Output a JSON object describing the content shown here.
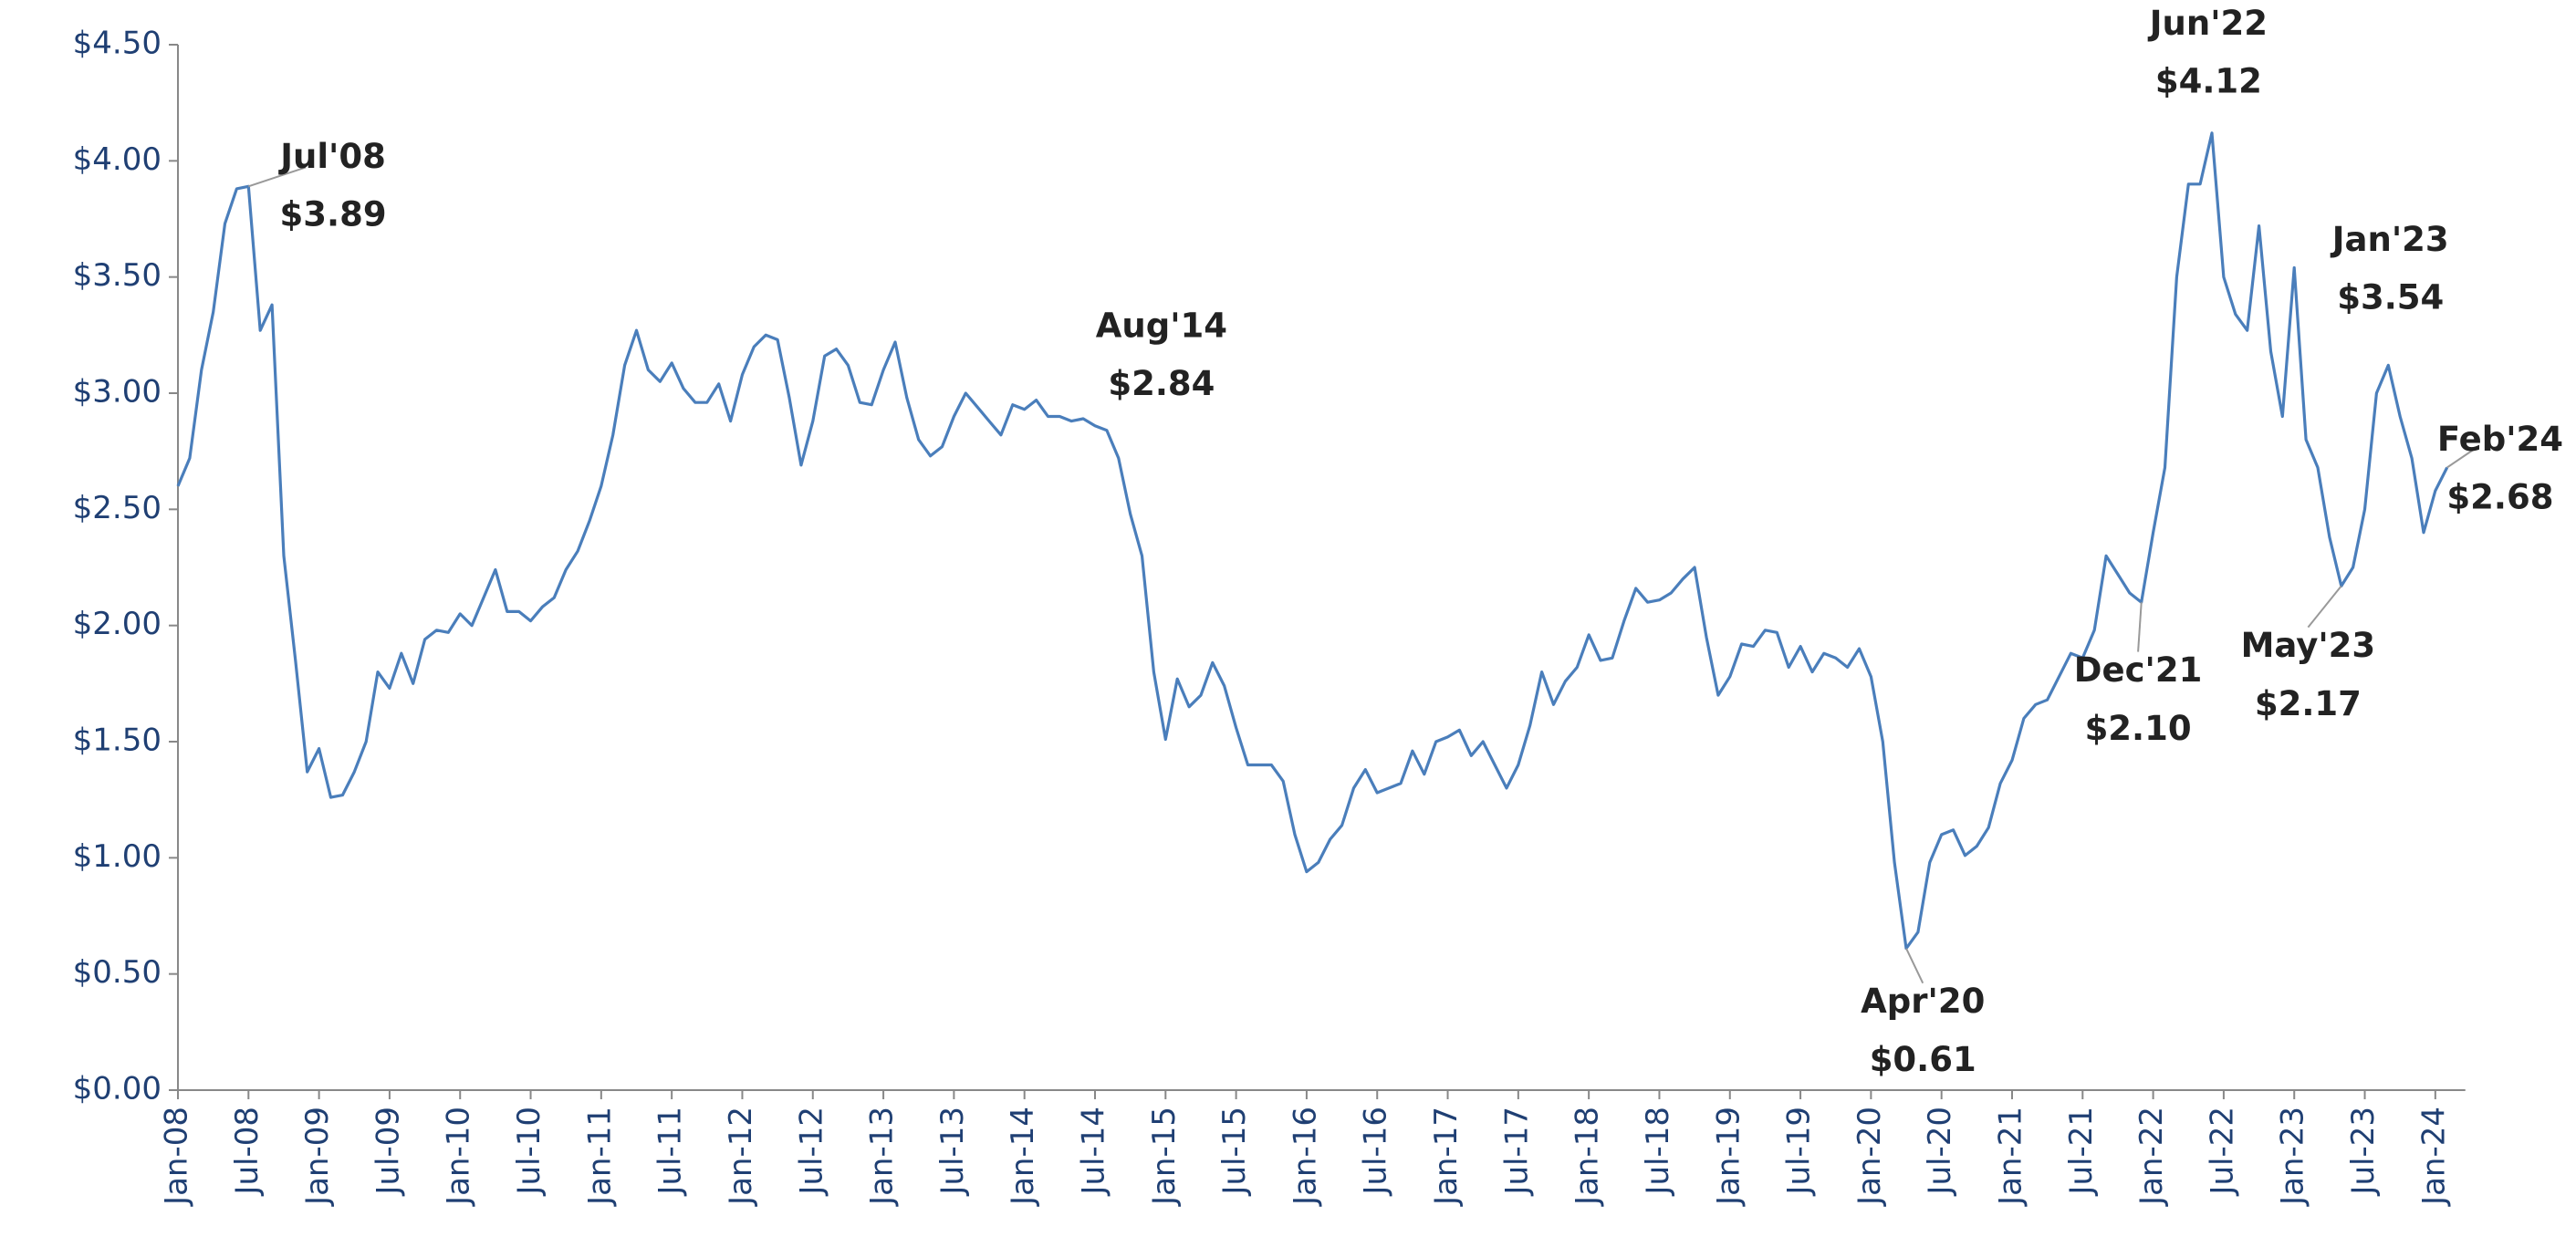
{
  "chart_data": {
    "type": "line",
    "categories": [
      "Jan-08",
      null,
      null,
      null,
      null,
      null,
      "Jul-08",
      null,
      null,
      null,
      null,
      null,
      "Jan-09",
      null,
      null,
      null,
      null,
      null,
      "Jul-09",
      null,
      null,
      null,
      null,
      null,
      "Jan-10",
      null,
      null,
      null,
      null,
      null,
      "Jul-10",
      null,
      null,
      null,
      null,
      null,
      "Jan-11",
      null,
      null,
      null,
      null,
      null,
      "Jul-11",
      null,
      null,
      null,
      null,
      null,
      "Jan-12",
      null,
      null,
      null,
      null,
      null,
      "Jul-12",
      null,
      null,
      null,
      null,
      null,
      "Jan-13",
      null,
      null,
      null,
      null,
      null,
      "Jul-13",
      null,
      null,
      null,
      null,
      null,
      "Jan-14",
      null,
      null,
      null,
      null,
      null,
      "Jul-14",
      null,
      null,
      null,
      null,
      null,
      "Jan-15",
      null,
      null,
      null,
      null,
      null,
      "Jul-15",
      null,
      null,
      null,
      null,
      null,
      "Jan-16",
      null,
      null,
      null,
      null,
      null,
      "Jul-16",
      null,
      null,
      null,
      null,
      null,
      "Jan-17",
      null,
      null,
      null,
      null,
      null,
      "Jul-17",
      null,
      null,
      null,
      null,
      null,
      "Jan-18",
      null,
      null,
      null,
      null,
      null,
      "Jul-18",
      null,
      null,
      null,
      null,
      null,
      "Jan-19",
      null,
      null,
      null,
      null,
      null,
      "Jul-19",
      null,
      null,
      null,
      null,
      null,
      "Jan-20",
      null,
      null,
      null,
      null,
      null,
      "Jul-20",
      null,
      null,
      null,
      null,
      null,
      "Jan-21",
      null,
      null,
      null,
      null,
      null,
      "Jul-21",
      null,
      null,
      null,
      null,
      null,
      "Jan-22",
      null,
      null,
      null,
      null,
      null,
      "Jul-22",
      null,
      null,
      null,
      null,
      null,
      "Jan-23",
      null,
      null,
      null,
      null,
      null,
      "Jul-23",
      null,
      null,
      null,
      null,
      null,
      "Jan-24",
      null
    ],
    "values": [
      2.6,
      2.72,
      3.1,
      3.35,
      3.73,
      3.88,
      3.89,
      3.27,
      3.38,
      2.3,
      1.85,
      1.37,
      1.47,
      1.26,
      1.27,
      1.37,
      1.5,
      1.8,
      1.73,
      1.88,
      1.75,
      1.94,
      1.98,
      1.97,
      2.05,
      2.0,
      2.12,
      2.24,
      2.06,
      2.06,
      2.02,
      2.08,
      2.12,
      2.24,
      2.32,
      2.45,
      2.6,
      2.82,
      3.12,
      3.27,
      3.1,
      3.05,
      3.13,
      3.02,
      2.96,
      2.96,
      3.04,
      2.88,
      3.08,
      3.2,
      3.25,
      3.23,
      2.98,
      2.69,
      2.88,
      3.16,
      3.19,
      3.12,
      2.96,
      2.95,
      3.1,
      3.22,
      2.98,
      2.8,
      2.73,
      2.77,
      2.9,
      3.0,
      2.94,
      2.88,
      2.82,
      2.95,
      2.93,
      2.97,
      2.9,
      2.9,
      2.88,
      2.89,
      2.86,
      2.84,
      2.72,
      2.48,
      2.3,
      1.8,
      1.51,
      1.77,
      1.65,
      1.7,
      1.84,
      1.74,
      1.56,
      1.4,
      1.4,
      1.4,
      1.33,
      1.1,
      0.94,
      0.98,
      1.08,
      1.14,
      1.3,
      1.38,
      1.28,
      1.3,
      1.32,
      1.46,
      1.36,
      1.5,
      1.52,
      1.55,
      1.44,
      1.5,
      1.4,
      1.3,
      1.4,
      1.57,
      1.8,
      1.66,
      1.76,
      1.82,
      1.96,
      1.85,
      1.86,
      2.02,
      2.16,
      2.1,
      2.11,
      2.14,
      2.2,
      2.25,
      1.95,
      1.7,
      1.78,
      1.92,
      1.91,
      1.98,
      1.97,
      1.82,
      1.91,
      1.8,
      1.88,
      1.86,
      1.82,
      1.9,
      1.78,
      1.5,
      0.98,
      0.61,
      0.68,
      0.98,
      1.1,
      1.12,
      1.01,
      1.05,
      1.13,
      1.32,
      1.42,
      1.6,
      1.66,
      1.68,
      1.78,
      1.88,
      1.86,
      1.98,
      2.3,
      2.22,
      2.14,
      2.1,
      2.4,
      2.68,
      3.5,
      3.9,
      3.9,
      4.12,
      3.5,
      3.34,
      3.27,
      3.72,
      3.18,
      2.9,
      3.54,
      2.8,
      2.68,
      2.38,
      2.17,
      2.25,
      2.5,
      3.0,
      3.12,
      2.9,
      2.72,
      2.4,
      2.58,
      2.68
    ],
    "point_labels": [
      null,
      null,
      null,
      null,
      null,
      null,
      "Jul'08",
      null,
      null,
      null,
      null,
      null,
      null,
      null,
      null,
      null,
      null,
      null,
      null,
      null,
      null,
      null,
      null,
      null,
      null,
      null,
      null,
      null,
      null,
      null,
      null,
      null,
      null,
      null,
      null,
      null,
      null,
      null,
      null,
      null,
      null,
      null,
      null,
      null,
      null,
      null,
      null,
      null,
      null,
      null,
      null,
      null,
      null,
      null,
      null,
      null,
      null,
      null,
      null,
      null,
      null,
      null,
      null,
      null,
      null,
      null,
      null,
      null,
      null,
      null,
      null,
      null,
      null,
      null,
      null,
      null,
      null,
      null,
      null,
      "Aug'14",
      null,
      null,
      null,
      null,
      null,
      null,
      null,
      null,
      null,
      null,
      null,
      null,
      null,
      null,
      null,
      null,
      null,
      null,
      null,
      null,
      null,
      null,
      null,
      null,
      null,
      null,
      null,
      null,
      null,
      null,
      null,
      null,
      null,
      null,
      null,
      null,
      null,
      null,
      null,
      null,
      null,
      null,
      null,
      null,
      null,
      null,
      null,
      null,
      null,
      null,
      null,
      null,
      null,
      null,
      null,
      null,
      null,
      null,
      null,
      null,
      null,
      null,
      null,
      null,
      null,
      null,
      null,
      "Apr'20",
      null,
      null,
      null,
      null,
      null,
      null,
      null,
      null,
      null,
      null,
      null,
      null,
      null,
      null,
      null,
      null,
      null,
      null,
      null,
      "Dec'21",
      null,
      null,
      null,
      null,
      null,
      "Jun'22",
      null,
      null,
      null,
      null,
      null,
      null,
      "Jan'23",
      null,
      null,
      null,
      "May'23",
      null,
      null,
      null,
      null,
      null,
      null,
      null,
      null,
      "Feb'24"
    ],
    "value_labels": [
      null,
      null,
      null,
      null,
      null,
      null,
      "$3.89",
      null,
      null,
      null,
      null,
      null,
      null,
      null,
      null,
      null,
      null,
      null,
      null,
      null,
      null,
      null,
      null,
      null,
      null,
      null,
      null,
      null,
      null,
      null,
      null,
      null,
      null,
      null,
      null,
      null,
      null,
      null,
      null,
      null,
      null,
      null,
      null,
      null,
      null,
      null,
      null,
      null,
      null,
      null,
      null,
      null,
      null,
      null,
      null,
      null,
      null,
      null,
      null,
      null,
      null,
      null,
      null,
      null,
      null,
      null,
      null,
      null,
      null,
      null,
      null,
      null,
      null,
      null,
      null,
      null,
      null,
      null,
      null,
      "$2.84",
      null,
      null,
      null,
      null,
      null,
      null,
      null,
      null,
      null,
      null,
      null,
      null,
      null,
      null,
      null,
      null,
      null,
      null,
      null,
      null,
      null,
      null,
      null,
      null,
      null,
      null,
      null,
      null,
      null,
      null,
      null,
      null,
      null,
      null,
      null,
      null,
      null,
      null,
      null,
      null,
      null,
      null,
      null,
      null,
      null,
      null,
      null,
      null,
      null,
      null,
      null,
      null,
      null,
      null,
      null,
      null,
      null,
      null,
      null,
      null,
      null,
      null,
      null,
      null,
      null,
      null,
      null,
      "$0.61",
      null,
      null,
      null,
      null,
      null,
      null,
      null,
      null,
      null,
      null,
      null,
      null,
      null,
      null,
      null,
      null,
      null,
      null,
      null,
      "$2.10",
      null,
      null,
      null,
      null,
      null,
      "$4.12",
      null,
      null,
      null,
      null,
      null,
      null,
      "$3.54",
      null,
      null,
      null,
      "$2.17",
      null,
      null,
      null,
      null,
      null,
      null,
      null,
      null,
      "$2.68"
    ],
    "color": "#4a7ebb",
    "ylim": [
      0,
      4.5
    ],
    "yticks": [
      {
        "value": 0,
        "label": "$0.00"
      },
      {
        "value": 0.5,
        "label": "$0.50"
      },
      {
        "value": 1,
        "label": "$1.00"
      },
      {
        "value": 1.5,
        "label": "$1.50"
      },
      {
        "value": 2,
        "label": "$2.00"
      },
      {
        "value": 2.5,
        "label": "$2.50"
      },
      {
        "value": 3,
        "label": "$3.00"
      },
      {
        "value": 3.5,
        "label": "$3.50"
      },
      {
        "value": 4,
        "label": "$4.00"
      },
      {
        "value": 4.5,
        "label": "$4.50"
      }
    ],
    "grid": false
  }
}
